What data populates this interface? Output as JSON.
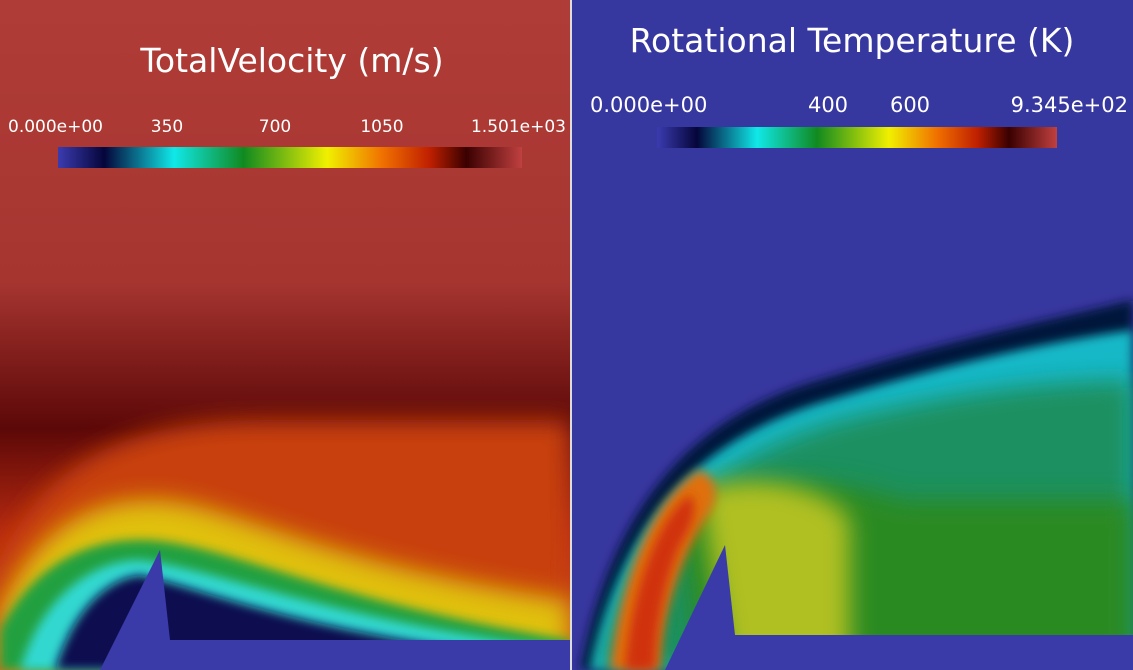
{
  "panels": [
    {
      "title": "TotalVelocity (m/s)",
      "colorbar_labels": [
        "0.000e+00",
        "350",
        "700",
        "1050",
        "1.501e+03"
      ]
    },
    {
      "title": "Rotational Temperature (K)",
      "colorbar_labels": [
        "0.000e+00",
        "400",
        "600",
        "9.345e+02"
      ]
    }
  ]
}
